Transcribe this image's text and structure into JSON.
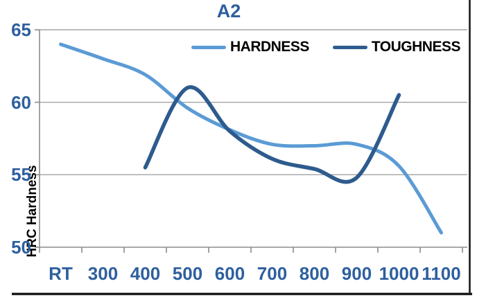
{
  "chart_data": {
    "type": "line",
    "title": "A2",
    "ylabel": "HRC Hardness",
    "xlabel": "",
    "categories": [
      "RT",
      "300",
      "400",
      "500",
      "600",
      "700",
      "800",
      "900",
      "1000",
      "1100"
    ],
    "y_ticks": [
      65,
      60,
      55,
      50
    ],
    "ylim": [
      50,
      65
    ],
    "grid": true,
    "smooth_lines": true,
    "legend_position": "top-inside",
    "series": [
      {
        "name": "HARDNESS",
        "color": "#5B9BD5",
        "values": [
          64,
          63,
          61.9,
          59.6,
          58.1,
          57.1,
          57.0,
          57.1,
          55.6,
          51.0
        ]
      },
      {
        "name": "TOUGHNESS",
        "color": "#2E5B8D",
        "values": [
          null,
          null,
          55.5,
          61.0,
          58.0,
          56.1,
          55.4,
          54.8,
          60.5,
          null
        ]
      }
    ]
  },
  "colors": {
    "title_text": "#2E5F9E",
    "tick_text": "#2E5F9E",
    "axis_title_text": "#000000",
    "legend_text": "#000000",
    "gridline": "#A3A3A3",
    "axis_line": "#8C8C8C",
    "frame_border": "#1A1A1A",
    "background": "#FFFFFF"
  }
}
